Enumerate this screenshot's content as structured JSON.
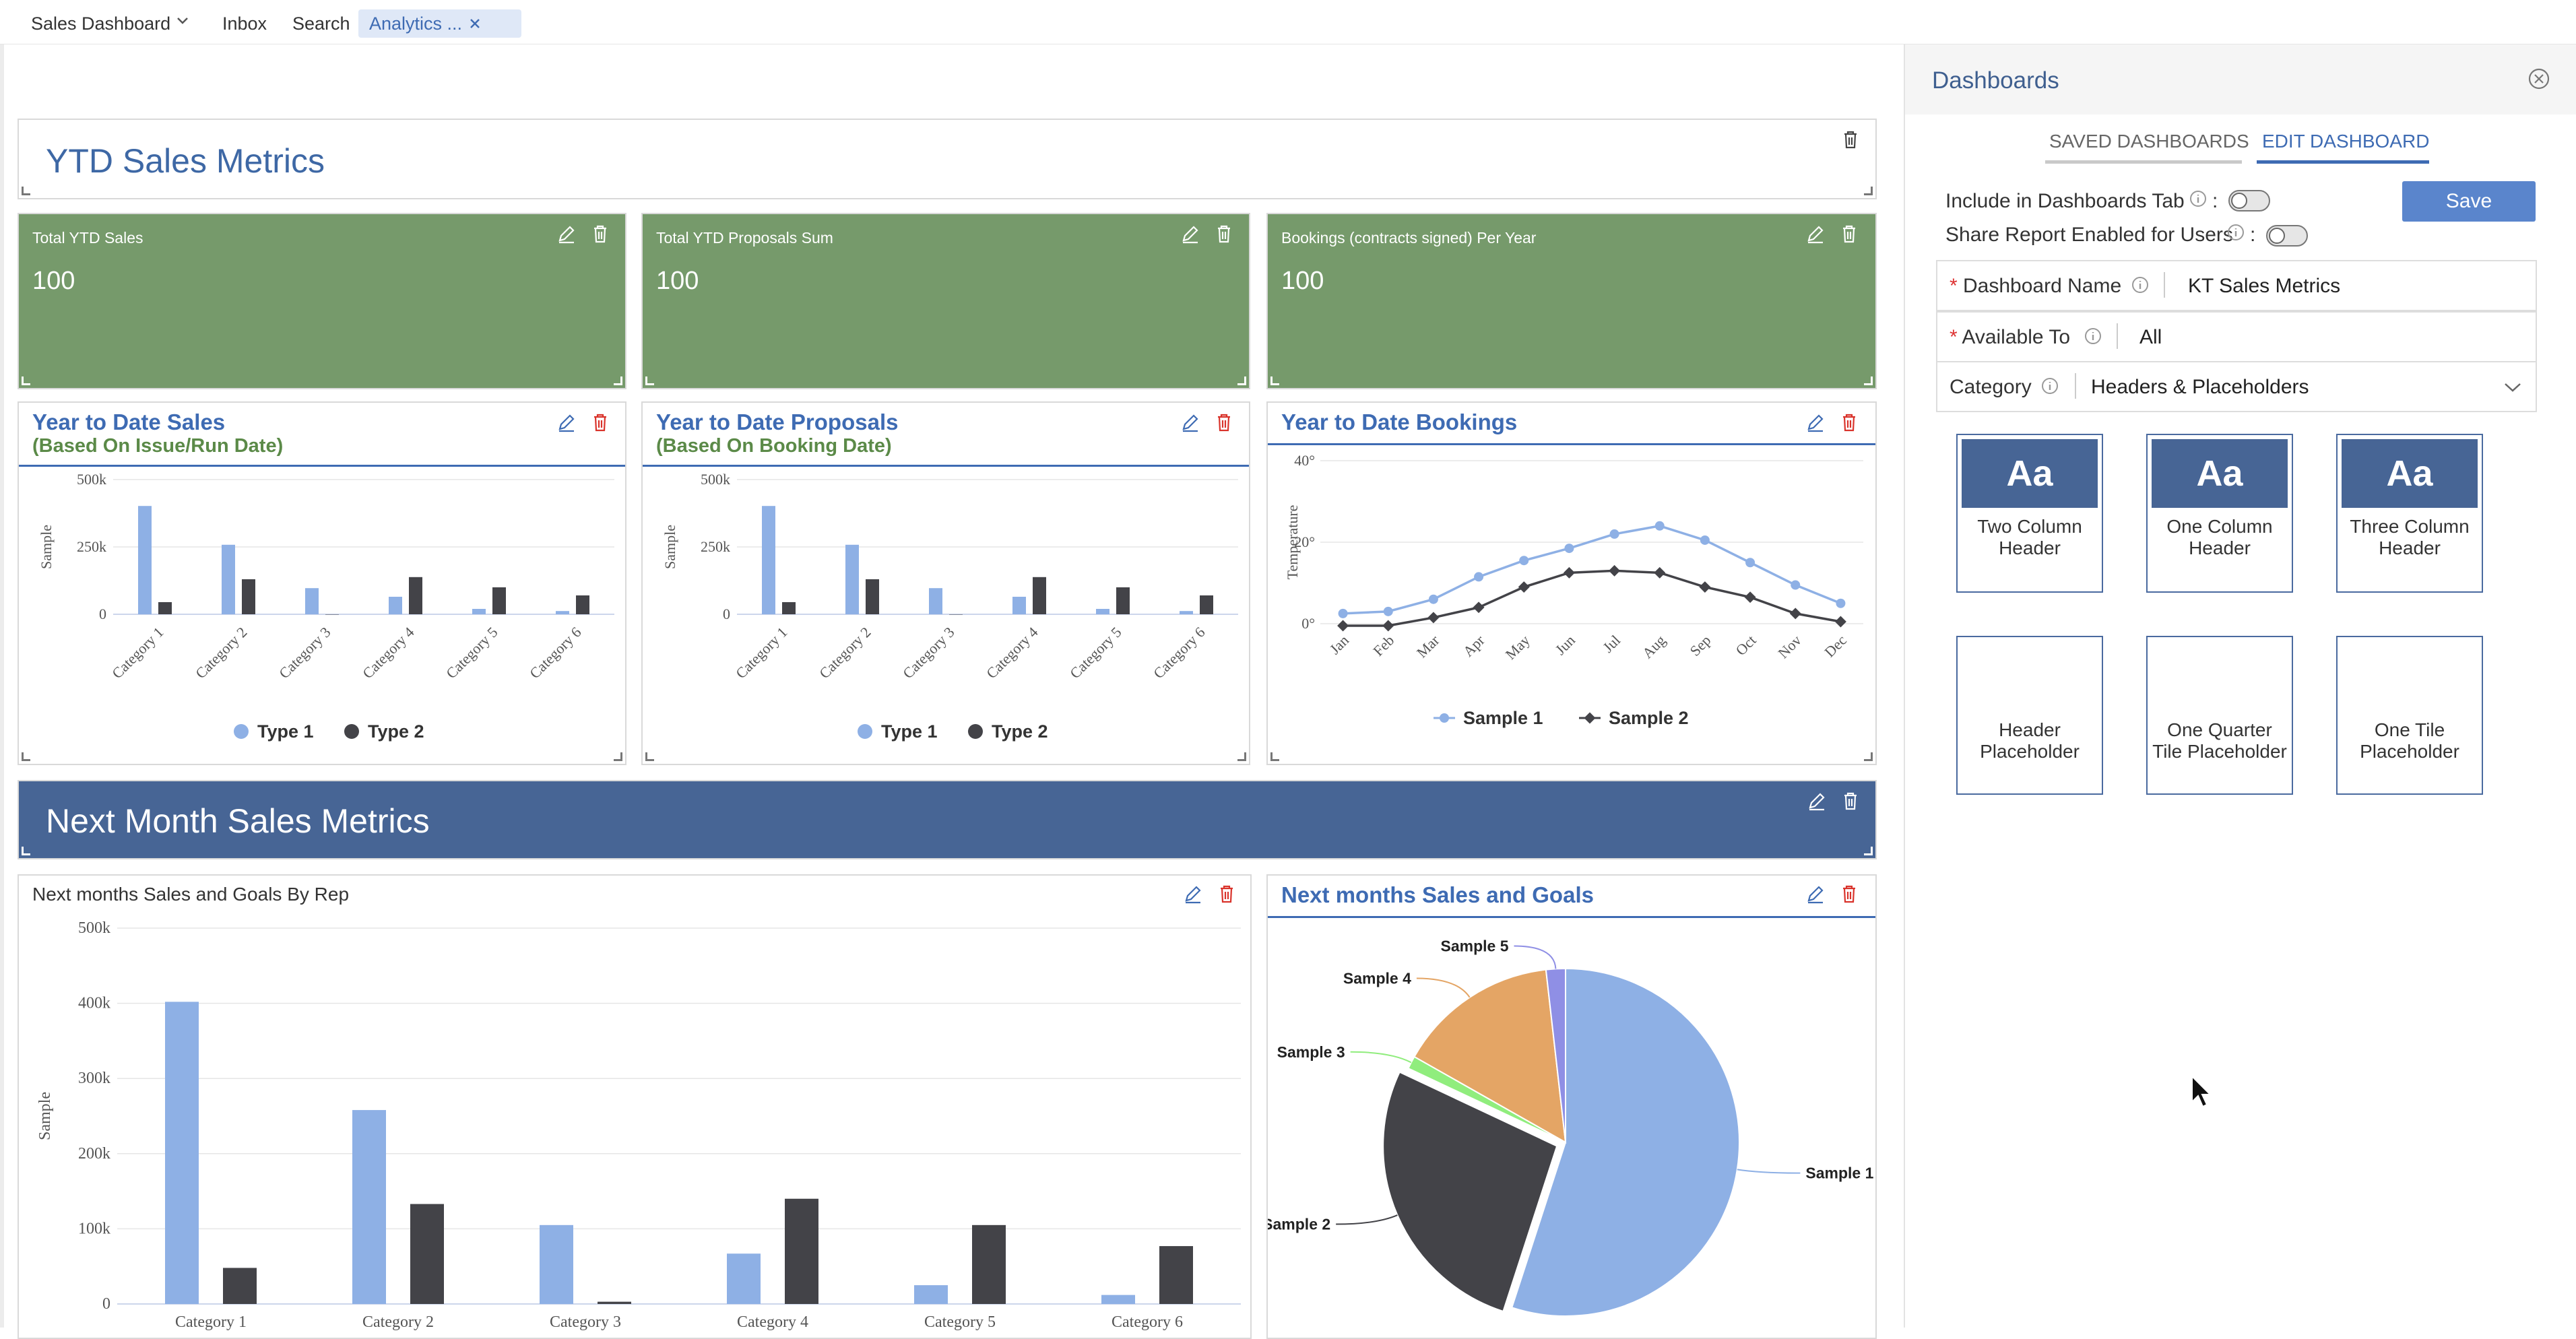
{
  "topbar": {
    "tabs": [
      {
        "label": "Sales Dashboard"
      },
      {
        "label": "Inbox"
      },
      {
        "label": "Search"
      },
      {
        "label": "Analytics ..."
      }
    ]
  },
  "main": {
    "ytd_header": {
      "title": "YTD Sales Metrics"
    },
    "kpis": [
      {
        "label": "Total YTD Sales",
        "value": "100"
      },
      {
        "label": "Total YTD Proposals Sum",
        "value": "100"
      },
      {
        "label": "Bookings (contracts signed) Per Year",
        "value": "100"
      }
    ],
    "charts": {
      "ytd_sales": {
        "title": "Year to Date Sales",
        "subtitle": "(Based On Issue/Run Date)"
      },
      "ytd_proposals": {
        "title": "Year to Date Proposals",
        "subtitle": "(Based On Booking Date)"
      },
      "ytd_bookings": {
        "title": "Year to Date Bookings"
      },
      "next_rep": {
        "title": "Next months Sales and Goals By Rep"
      },
      "next_goals": {
        "title": "Next months Sales and Goals"
      }
    },
    "next_header": {
      "title": "Next Month Sales Metrics"
    }
  },
  "colors": {
    "type1": "#8eb0e5",
    "type2": "#434348",
    "green_tile": "#769a6b",
    "navy": "#476595",
    "accent": "#3e6bb3",
    "delete_red": "#d9332b"
  },
  "chart_data": [
    {
      "type": "bar",
      "title": "Year to Date Sales",
      "subtitle": "(Based On Issue/Run Date)",
      "ylabel": "Sample",
      "yticks": [
        "500k",
        "250k",
        "0"
      ],
      "ylim": [
        0,
        500000
      ],
      "categories": [
        "Category 1",
        "Category 2",
        "Category 3",
        "Category 4",
        "Category 5",
        "Category 6"
      ],
      "series": [
        {
          "name": "Type 1",
          "values": [
            402000,
            258000,
            97000,
            65000,
            20000,
            12000
          ]
        },
        {
          "name": "Type 2",
          "values": [
            45000,
            130000,
            0,
            138000,
            100000,
            70000
          ]
        }
      ],
      "legend": "bottom"
    },
    {
      "type": "bar",
      "title": "Year to Date Proposals",
      "subtitle": "(Based On Booking Date)",
      "ylabel": "Sample",
      "yticks": [
        "500k",
        "250k",
        "0"
      ],
      "ylim": [
        0,
        500000
      ],
      "categories": [
        "Category 1",
        "Category 2",
        "Category 3",
        "Category 4",
        "Category 5",
        "Category 6"
      ],
      "series": [
        {
          "name": "Type 1",
          "values": [
            402000,
            258000,
            97000,
            65000,
            20000,
            12000
          ]
        },
        {
          "name": "Type 2",
          "values": [
            45000,
            130000,
            0,
            138000,
            100000,
            70000
          ]
        }
      ],
      "legend": "bottom"
    },
    {
      "type": "line",
      "title": "Year to Date Bookings",
      "ylabel": "Temperature",
      "yticks": [
        "40°",
        "20°",
        "0°"
      ],
      "ylim": [
        0,
        40
      ],
      "categories": [
        "Jan",
        "Feb",
        "Mar",
        "Apr",
        "May",
        "Jun",
        "Jul",
        "Aug",
        "Sep",
        "Oct",
        "Nov",
        "Dec"
      ],
      "series": [
        {
          "name": "Sample 1",
          "values": [
            2.5,
            3,
            6,
            11.5,
            15.5,
            18.5,
            22,
            24,
            20.5,
            15,
            9.5,
            5
          ]
        },
        {
          "name": "Sample 2",
          "values": [
            -0.5,
            -0.5,
            1.5,
            4,
            9,
            12.5,
            13,
            12.5,
            9,
            6.5,
            2.5,
            0.5
          ]
        }
      ],
      "legend": "bottom"
    },
    {
      "type": "bar",
      "title": "Next months Sales and Goals By Rep",
      "ylabel": "Sample",
      "yticks": [
        "500k",
        "400k",
        "300k",
        "200k",
        "100k",
        "0"
      ],
      "ylim": [
        0,
        500000
      ],
      "categories": [
        "Category 1",
        "Category 2",
        "Category 3",
        "Category 4",
        "Category 5",
        "Category 6"
      ],
      "series": [
        {
          "name": "Type 1",
          "values": [
            402000,
            258000,
            105000,
            67000,
            25000,
            12000
          ]
        },
        {
          "name": "Type 2",
          "values": [
            48000,
            133000,
            3000,
            140000,
            105000,
            77000
          ]
        }
      ]
    },
    {
      "type": "pie",
      "title": "Next months Sales and Goals",
      "slices": [
        {
          "label": "Sample 1",
          "value": 55
        },
        {
          "label": "Sample 2",
          "value": 27
        },
        {
          "label": "Sample 3",
          "value": 1.2
        },
        {
          "label": "Sample 4",
          "value": 15
        },
        {
          "label": "Sample 5",
          "value": 1.8
        }
      ],
      "colors": [
        "#8eb0e5",
        "#434348",
        "#90ed7d",
        "#e4a565",
        "#8f8fe5"
      ]
    }
  ],
  "sidebar": {
    "title": "Dashboards",
    "tabs": [
      {
        "label": "SAVED DASHBOARDS"
      },
      {
        "label": "EDIT DASHBOARD"
      }
    ],
    "include_label": "Include in Dashboards Tab",
    "share_label": "Share Report Enabled for Users",
    "colon": ":",
    "save_label": "Save",
    "fields": {
      "name": {
        "label": "Dashboard Name",
        "value": "KT Sales Metrics"
      },
      "available": {
        "label": "Available To",
        "value": "All"
      },
      "category": {
        "label": "Category",
        "value": "Headers & Placeholders"
      }
    },
    "tile_glyph": "Aa",
    "tiles": [
      {
        "label": "Two Column Header"
      },
      {
        "label": "One Column Header"
      },
      {
        "label": "Three Column Header"
      },
      {
        "label": "Header Placeholder"
      },
      {
        "label": "One Quarter Tile Placeholder"
      },
      {
        "label": "One Tile Placeholder"
      }
    ]
  }
}
